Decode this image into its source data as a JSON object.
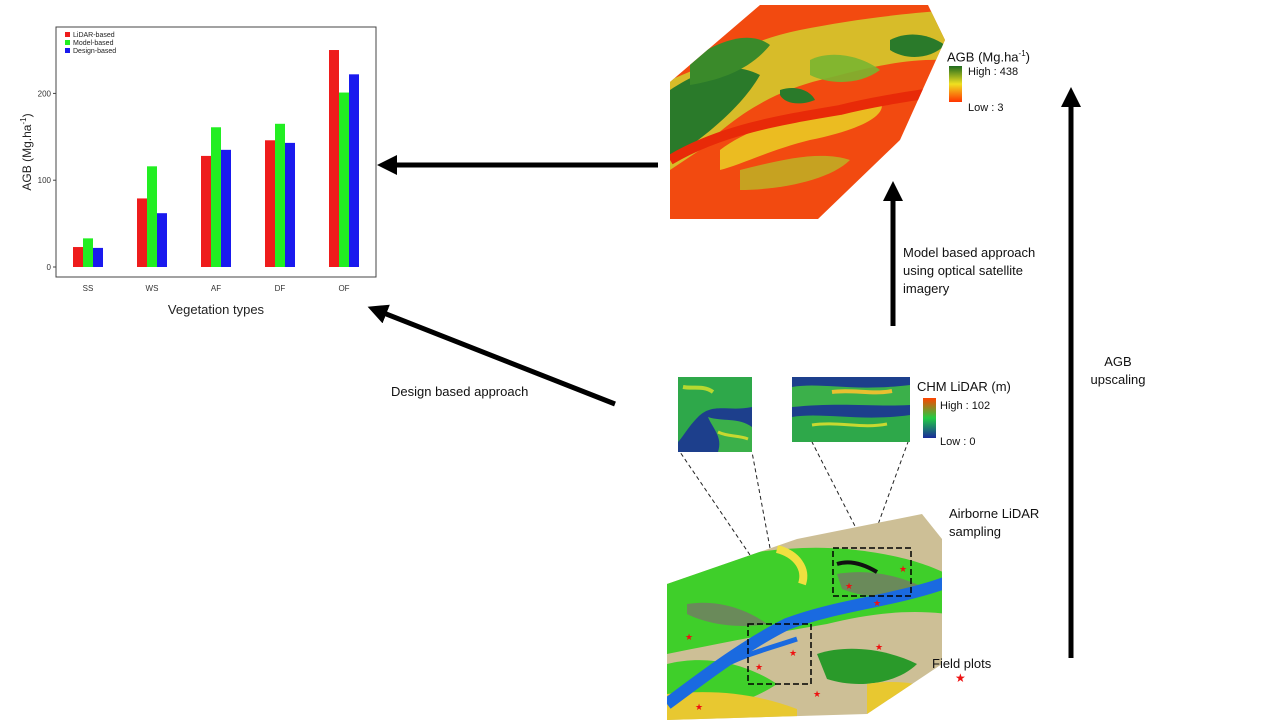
{
  "chart_data": {
    "type": "bar",
    "categories": [
      "SS",
      "WS",
      "AF",
      "DF",
      "OF"
    ],
    "series": [
      {
        "name": "LiDAR-based",
        "color": "#ee1c1c",
        "values": [
          23,
          79,
          128,
          146,
          250
        ]
      },
      {
        "name": "Model-based",
        "color": "#22ee22",
        "values": [
          33,
          116,
          161,
          165,
          201
        ]
      },
      {
        "name": "Design-based",
        "color": "#1a1aee",
        "values": [
          22,
          62,
          135,
          143,
          222
        ]
      }
    ],
    "ylabel_main": "AGB (Mg.ha",
    "ylabel_sup": "-1",
    "ylabel_close": ")",
    "xlabel": "Vegetation types",
    "yticks": [
      0,
      100,
      200
    ],
    "ylim": [
      0,
      265
    ],
    "grid": false,
    "legend_position": "top-left"
  },
  "agb_map": {
    "title_main": "AGB (Mg.ha",
    "title_sup": "-1",
    "title_close": ")",
    "high_label": "High : 438",
    "low_label": "Low : 3"
  },
  "chm": {
    "title": "CHM LiDAR (m)",
    "high_label": "High : 102",
    "low_label": "Low : 0"
  },
  "labels": {
    "model_line1": "Model  based approach",
    "model_line2": "using optical satellite",
    "model_line3": "imagery",
    "design": "Design based approach",
    "upscale_line1": "AGB",
    "upscale_line2": "upscaling",
    "lidar_line1": "Airborne  LiDAR",
    "lidar_line2": "sampling",
    "field_plots": "Field plots"
  },
  "colors": {
    "agb_high": "#1e6b1e",
    "agb_mid": "#f0e020",
    "agb_low": "#ff3300",
    "chm_high": "#ff4400",
    "chm_mid": "#22cc44",
    "chm_low": "#1a2a9a"
  }
}
